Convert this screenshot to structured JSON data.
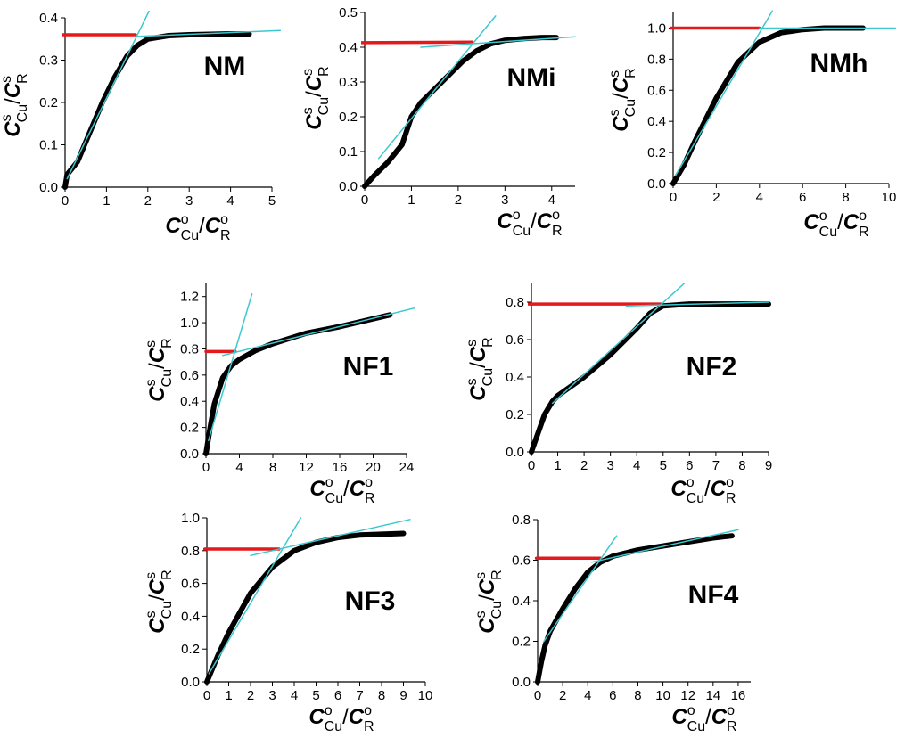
{
  "chart_data": [
    {
      "type": "line",
      "title": "NM",
      "xlabel": "CoCu/CoR",
      "ylabel": "CsCu/CsR",
      "xlim": [
        0,
        5
      ],
      "ylim": [
        0,
        0.4
      ],
      "xticks": [
        "0",
        "1",
        "2",
        "3",
        "4",
        "5"
      ],
      "yticks": [
        "0.0",
        "0.1",
        "0.2",
        "0.3",
        "0.4"
      ],
      "series": [
        {
          "name": "data",
          "color": "#000000",
          "x": [
            0,
            0.05,
            0.3,
            0.6,
            0.9,
            1.2,
            1.5,
            1.75,
            2.0,
            2.5,
            3.0,
            3.5,
            4.0,
            4.45
          ],
          "y": [
            0,
            0.03,
            0.06,
            0.13,
            0.2,
            0.26,
            0.31,
            0.335,
            0.35,
            0.358,
            0.36,
            0.361,
            0.362,
            0.362
          ]
        },
        {
          "name": "tangent-initial",
          "color": "#3cc8cf",
          "x": [
            0.05,
            2.1
          ],
          "y": [
            0.02,
            0.43
          ]
        },
        {
          "name": "tangent-plateau",
          "color": "#3cc8cf",
          "x": [
            1.7,
            5.2
          ],
          "y": [
            0.356,
            0.37
          ]
        },
        {
          "name": "saturation-level",
          "color": "#e3191c",
          "x": [
            -0.2,
            1.7
          ],
          "y": [
            0.36,
            0.36
          ]
        }
      ]
    },
    {
      "type": "line",
      "title": "NMi",
      "xlabel": "CoCu/CoR",
      "ylabel": "CsCu/CsR",
      "xlim": [
        0,
        4.5
      ],
      "ylim": [
        0,
        0.5
      ],
      "xticks": [
        "0",
        "1",
        "2",
        "3",
        "4"
      ],
      "yticks": [
        "0.0",
        "0.1",
        "0.2",
        "0.3",
        "0.4",
        "0.5"
      ],
      "series": [
        {
          "name": "data",
          "color": "#000000",
          "x": [
            0,
            0.2,
            0.5,
            0.8,
            1.0,
            1.2,
            1.5,
            1.8,
            2.1,
            2.4,
            2.7,
            3.0,
            3.4,
            3.8,
            4.1
          ],
          "y": [
            0,
            0.03,
            0.07,
            0.12,
            0.2,
            0.24,
            0.28,
            0.32,
            0.36,
            0.39,
            0.41,
            0.42,
            0.425,
            0.428,
            0.428
          ]
        },
        {
          "name": "tangent-initial",
          "color": "#3cc8cf",
          "x": [
            0.3,
            2.8
          ],
          "y": [
            0.08,
            0.49
          ]
        },
        {
          "name": "tangent-plateau",
          "color": "#3cc8cf",
          "x": [
            1.2,
            4.5
          ],
          "y": [
            0.4,
            0.43
          ]
        },
        {
          "name": "saturation-level",
          "color": "#e3191c",
          "x": [
            -0.1,
            2.3
          ],
          "y": [
            0.413,
            0.415
          ]
        }
      ]
    },
    {
      "type": "line",
      "title": "NMh",
      "xlabel": "CoCu/CoR",
      "ylabel": "CsCu/CsR",
      "xlim": [
        0,
        10
      ],
      "ylim": [
        0,
        1.1
      ],
      "xticks": [
        "0",
        "2",
        "4",
        "6",
        "8",
        "10"
      ],
      "yticks": [
        "0.0",
        "0.2",
        "0.4",
        "0.6",
        "0.8",
        "1.0"
      ],
      "series": [
        {
          "name": "data",
          "color": "#000000",
          "x": [
            0,
            0.5,
            1,
            2,
            3,
            4,
            5,
            6,
            7,
            8,
            8.8
          ],
          "y": [
            0,
            0.12,
            0.27,
            0.55,
            0.78,
            0.91,
            0.97,
            0.99,
            1.0,
            1.0,
            1.0
          ]
        },
        {
          "name": "tangent-initial",
          "color": "#3cc8cf",
          "x": [
            0.1,
            4.6
          ],
          "y": [
            0.05,
            1.11
          ]
        },
        {
          "name": "tangent-plateau",
          "color": "#3cc8cf",
          "x": [
            4.0,
            10.3
          ],
          "y": [
            1.0,
            1.0
          ]
        },
        {
          "name": "saturation-level",
          "color": "#e3191c",
          "x": [
            -0.3,
            4.0
          ],
          "y": [
            1.0,
            1.0
          ]
        }
      ]
    },
    {
      "type": "line",
      "title": "NF1",
      "xlabel": "CoCu/CoR",
      "ylabel": "CsCu/CsR",
      "xlim": [
        0,
        24
      ],
      "ylim": [
        0,
        1.3
      ],
      "xticks": [
        "0",
        "4",
        "8",
        "12",
        "16",
        "20",
        "24"
      ],
      "yticks": [
        "0.0",
        "0.2",
        "0.4",
        "0.6",
        "0.8",
        "1.0",
        "1.2"
      ],
      "series": [
        {
          "name": "data",
          "color": "#000000",
          "x": [
            0,
            0.5,
            1,
            2,
            3,
            4,
            6,
            8,
            12,
            16,
            20,
            22
          ],
          "y": [
            0,
            0.2,
            0.38,
            0.58,
            0.67,
            0.72,
            0.79,
            0.84,
            0.92,
            0.97,
            1.03,
            1.06
          ]
        },
        {
          "name": "tangent-initial",
          "color": "#3cc8cf",
          "x": [
            0.3,
            5.5
          ],
          "y": [
            0.1,
            1.22
          ]
        },
        {
          "name": "tangent-plateau",
          "color": "#3cc8cf",
          "x": [
            2.0,
            25.5
          ],
          "y": [
            0.75,
            1.12
          ]
        },
        {
          "name": "saturation-level",
          "color": "#e3191c",
          "x": [
            0,
            3.5
          ],
          "y": [
            0.78,
            0.78
          ]
        }
      ]
    },
    {
      "type": "line",
      "title": "NF2",
      "xlabel": "CoCu/CoR",
      "ylabel": "CsCu/CsR",
      "xlim": [
        0,
        9
      ],
      "ylim": [
        0,
        0.9
      ],
      "xticks": [
        "0",
        "1",
        "2",
        "3",
        "4",
        "5",
        "6",
        "7",
        "8",
        "9"
      ],
      "yticks": [
        "0.0",
        "0.2",
        "0.4",
        "0.6",
        "0.8"
      ],
      "series": [
        {
          "name": "data",
          "color": "#000000",
          "x": [
            0,
            0.2,
            0.5,
            0.8,
            1,
            2,
            3,
            4,
            4.5,
            5,
            6,
            7,
            8,
            9
          ],
          "y": [
            0,
            0.08,
            0.2,
            0.27,
            0.3,
            0.4,
            0.52,
            0.66,
            0.74,
            0.78,
            0.79,
            0.79,
            0.79,
            0.79
          ]
        },
        {
          "name": "tangent-initial",
          "color": "#3cc8cf",
          "x": [
            0.8,
            5.8
          ],
          "y": [
            0.26,
            0.9
          ]
        },
        {
          "name": "tangent-plateau",
          "color": "#3cc8cf",
          "x": [
            3.6,
            9
          ],
          "y": [
            0.78,
            0.8
          ]
        },
        {
          "name": "saturation-level",
          "color": "#e3191c",
          "x": [
            -0.1,
            4.9
          ],
          "y": [
            0.79,
            0.79
          ]
        }
      ]
    },
    {
      "type": "line",
      "title": "NF3",
      "xlabel": "CoCu/CoR",
      "ylabel": "CsCu/CsR",
      "xlim": [
        0,
        10
      ],
      "ylim": [
        0,
        1.0
      ],
      "xticks": [
        "0",
        "1",
        "2",
        "3",
        "4",
        "5",
        "6",
        "7",
        "8",
        "9",
        "10"
      ],
      "yticks": [
        "0.0",
        "0.2",
        "0.4",
        "0.6",
        "0.8",
        "1.0"
      ],
      "series": [
        {
          "name": "data",
          "color": "#000000",
          "x": [
            0,
            0.5,
            1,
            2,
            3,
            4,
            5,
            6,
            7,
            8,
            9
          ],
          "y": [
            0,
            0.16,
            0.3,
            0.54,
            0.7,
            0.8,
            0.85,
            0.88,
            0.895,
            0.9,
            0.905
          ]
        },
        {
          "name": "tangent-initial",
          "color": "#3cc8cf",
          "x": [
            0.1,
            4.3
          ],
          "y": [
            0.05,
            1.0
          ]
        },
        {
          "name": "tangent-plateau",
          "color": "#3cc8cf",
          "x": [
            2.0,
            9.3
          ],
          "y": [
            0.77,
            0.99
          ]
        },
        {
          "name": "saturation-level",
          "color": "#e3191c",
          "x": [
            -0.1,
            3.3
          ],
          "y": [
            0.81,
            0.81
          ]
        }
      ]
    },
    {
      "type": "line",
      "title": "NF4",
      "xlabel": "CoCu/CoR",
      "ylabel": "CsCu/CsR",
      "xlim": [
        0,
        17
      ],
      "ylim": [
        0,
        0.8
      ],
      "xticks": [
        "0",
        "2",
        "4",
        "6",
        "8",
        "10",
        "12",
        "14",
        "16"
      ],
      "yticks": [
        "0.0",
        "0.2",
        "0.4",
        "0.6",
        "0.8"
      ],
      "series": [
        {
          "name": "data",
          "color": "#000000",
          "x": [
            0,
            0.3,
            0.6,
            1,
            2,
            3,
            4,
            5,
            6,
            8,
            10,
            12,
            14,
            15.5
          ],
          "y": [
            0,
            0.1,
            0.18,
            0.25,
            0.36,
            0.46,
            0.54,
            0.59,
            0.62,
            0.65,
            0.67,
            0.69,
            0.71,
            0.72
          ]
        },
        {
          "name": "tangent-initial",
          "color": "#3cc8cf",
          "x": [
            0.5,
            6.3
          ],
          "y": [
            0.2,
            0.72
          ]
        },
        {
          "name": "tangent-plateau",
          "color": "#3cc8cf",
          "x": [
            4.3,
            16
          ],
          "y": [
            0.59,
            0.75
          ]
        },
        {
          "name": "saturation-level",
          "color": "#e3191c",
          "x": [
            -0.1,
            5.0
          ],
          "y": [
            0.61,
            0.61
          ]
        }
      ]
    }
  ]
}
